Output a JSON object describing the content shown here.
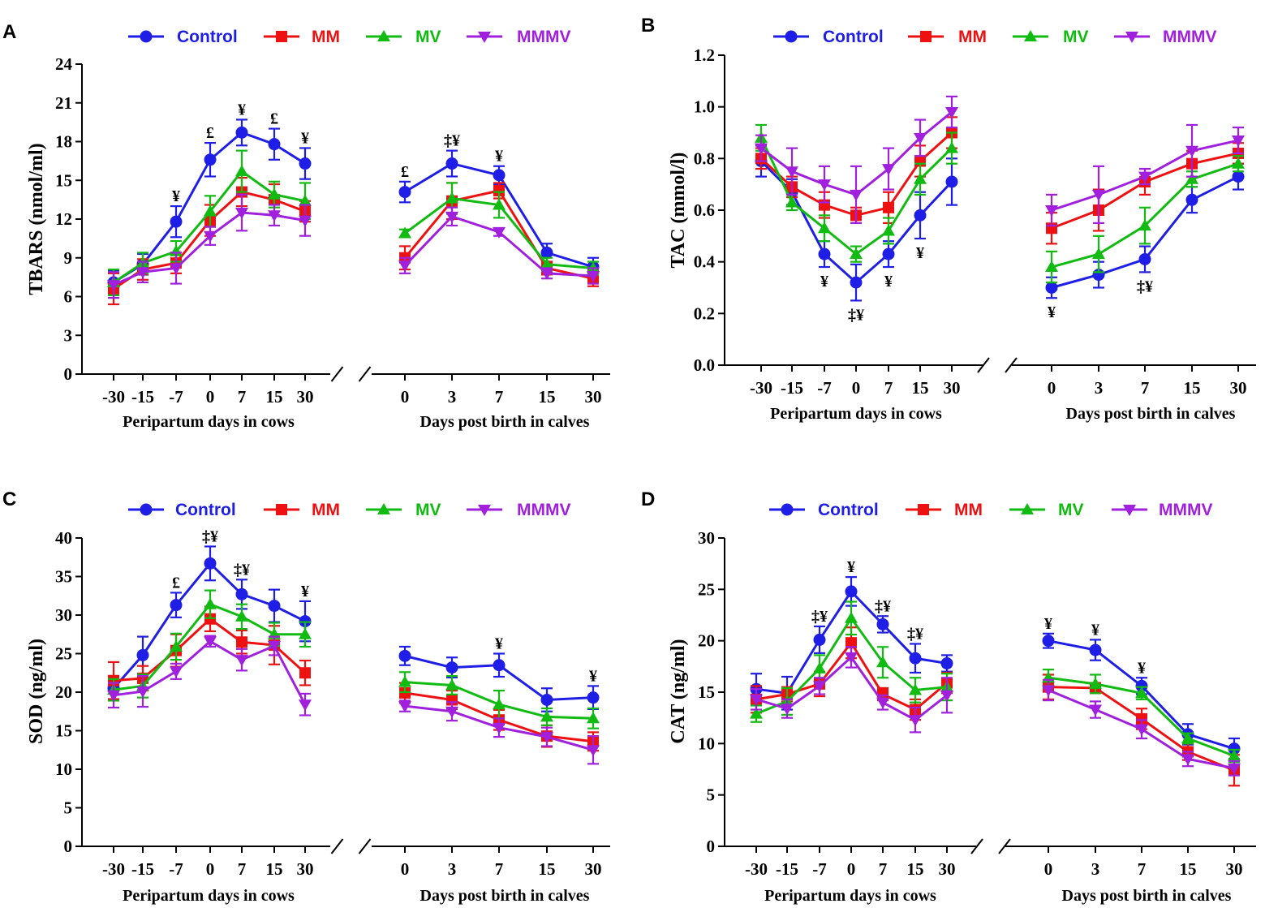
{
  "colors": {
    "Control": "#1e1ee6",
    "MM": "#ee1111",
    "MV": "#11bb11",
    "MMMV": "#a020dd",
    "axis": "#000000"
  },
  "chart_data": [
    {
      "panel": "A",
      "type": "line",
      "ylabel": "TBARS (nmol/ml)",
      "ylim": [
        0,
        24
      ],
      "yticks": [
        "0",
        "3",
        "6",
        "9",
        "12",
        "15",
        "18",
        "21",
        "24"
      ],
      "legend": [
        "Control",
        "MM",
        "MV",
        "MMMV"
      ],
      "segments": [
        {
          "xlabel": "Peripartum days in cows",
          "categories": [
            "-30",
            "-15",
            "-7",
            "0",
            "7",
            "15",
            "30"
          ],
          "series": [
            {
              "name": "Control",
              "values": [
                7.1,
                8.5,
                11.8,
                16.6,
                18.7,
                17.8,
                16.3
              ],
              "errors": [
                0.9,
                0.8,
                1.2,
                1.3,
                1.0,
                1.2,
                1.2
              ]
            },
            {
              "name": "MM",
              "values": [
                6.6,
                8.1,
                8.6,
                11.9,
                14.1,
                13.5,
                12.6
              ],
              "errors": [
                1.2,
                0.8,
                0.8,
                1.2,
                1.1,
                1.2,
                0.8
              ]
            },
            {
              "name": "MV",
              "values": [
                7.1,
                8.6,
                9.5,
                12.6,
                15.7,
                13.9,
                13.4
              ],
              "errors": [
                1.0,
                0.8,
                0.8,
                1.2,
                1.6,
                1.0,
                1.4
              ]
            },
            {
              "name": "MMMV",
              "values": [
                6.9,
                7.9,
                8.2,
                10.7,
                12.5,
                12.3,
                11.9
              ],
              "errors": [
                1.0,
                0.8,
                1.2,
                0.7,
                1.4,
                0.8,
                1.2
              ]
            }
          ],
          "annotations": [
            {
              "x": "-7",
              "text": "¥"
            },
            {
              "x": "0",
              "text": "£"
            },
            {
              "x": "7",
              "text": "¥"
            },
            {
              "x": "15",
              "text": "£"
            },
            {
              "x": "30",
              "text": "¥"
            }
          ]
        },
        {
          "xlabel": "Days post birth in calves",
          "categories": [
            "0",
            "3",
            "7",
            "15",
            "30"
          ],
          "series": [
            {
              "name": "Control",
              "values": [
                14.1,
                16.3,
                15.4,
                9.4,
                8.3
              ],
              "errors": [
                0.8,
                1.0,
                0.7,
                0.7,
                0.7
              ]
            },
            {
              "name": "MM",
              "values": [
                9.0,
                13.4,
                14.2,
                8.2,
                7.4
              ],
              "errors": [
                0.9,
                1.4,
                0.6,
                0.5,
                0.6
              ]
            },
            {
              "name": "MV",
              "values": [
                10.9,
                13.6,
                13.1,
                8.5,
                8.2
              ],
              "errors": [
                0.3,
                1.2,
                1.0,
                0.5,
                0.5
              ]
            },
            {
              "name": "MMMV",
              "values": [
                8.4,
                12.2,
                11.0,
                7.8,
                7.6
              ],
              "errors": [
                0.6,
                0.7,
                0.3,
                0.4,
                0.6
              ]
            }
          ],
          "annotations": [
            {
              "x": "0",
              "text": "£"
            },
            {
              "x": "3",
              "text": "‡¥"
            },
            {
              "x": "7",
              "text": "¥"
            }
          ]
        }
      ]
    },
    {
      "panel": "B",
      "type": "line",
      "ylabel": "TAC (mmol/l)",
      "ylim": [
        0,
        1.2
      ],
      "yticks": [
        "0.0",
        "0.2",
        "0.4",
        "0.6",
        "0.8",
        "1.0",
        "1.2"
      ],
      "legend": [
        "Control",
        "MM",
        "MV",
        "MMMV"
      ],
      "segments": [
        {
          "xlabel": "Peripartum days in cows",
          "categories": [
            "-30",
            "-15",
            "-7",
            "0",
            "7",
            "15",
            "30"
          ],
          "series": [
            {
              "name": "Control",
              "values": [
                0.79,
                0.67,
                0.43,
                0.32,
                0.43,
                0.58,
                0.71
              ],
              "errors": [
                0.06,
                0.05,
                0.05,
                0.07,
                0.05,
                0.09,
                0.09
              ]
            },
            {
              "name": "MM",
              "values": [
                0.8,
                0.69,
                0.62,
                0.58,
                0.61,
                0.79,
                0.9
              ],
              "errors": [
                0.04,
                0.04,
                0.05,
                0.03,
                0.06,
                0.06,
                0.06
              ]
            },
            {
              "name": "MV",
              "values": [
                0.88,
                0.63,
                0.53,
                0.43,
                0.52,
                0.72,
                0.84
              ],
              "errors": [
                0.05,
                0.03,
                0.05,
                0.03,
                0.05,
                0.06,
                0.06
              ]
            },
            {
              "name": "MMMV",
              "values": [
                0.84,
                0.75,
                0.7,
                0.66,
                0.76,
                0.88,
                0.98
              ],
              "errors": [
                0.05,
                0.09,
                0.07,
                0.11,
                0.08,
                0.07,
                0.06
              ]
            }
          ],
          "annotations": [
            {
              "x": "-7",
              "text": "¥"
            },
            {
              "x": "0",
              "text": "‡¥"
            },
            {
              "x": "7",
              "text": "¥"
            },
            {
              "x": "15",
              "text": "¥"
            }
          ]
        },
        {
          "xlabel": "Days post birth in calves",
          "categories": [
            "0",
            "3",
            "7",
            "15",
            "30"
          ],
          "series": [
            {
              "name": "Control",
              "values": [
                0.3,
                0.35,
                0.41,
                0.64,
                0.73
              ],
              "errors": [
                0.04,
                0.05,
                0.05,
                0.05,
                0.05
              ]
            },
            {
              "name": "MM",
              "values": [
                0.53,
                0.6,
                0.71,
                0.78,
                0.82
              ],
              "errors": [
                0.06,
                0.08,
                0.05,
                0.05,
                0.04
              ]
            },
            {
              "name": "MV",
              "values": [
                0.38,
                0.43,
                0.54,
                0.72,
                0.78
              ],
              "errors": [
                0.06,
                0.07,
                0.07,
                0.03,
                0.03
              ]
            },
            {
              "name": "MMMV",
              "values": [
                0.6,
                0.66,
                0.73,
                0.83,
                0.87
              ],
              "errors": [
                0.06,
                0.11,
                0.03,
                0.1,
                0.05
              ]
            }
          ],
          "annotations": [
            {
              "x": "0",
              "text": "¥"
            },
            {
              "x": "7",
              "text": "‡¥"
            }
          ]
        }
      ]
    },
    {
      "panel": "C",
      "type": "line",
      "ylabel": "SOD (ng/ml)",
      "ylim": [
        0,
        40
      ],
      "yticks": [
        "0",
        "5",
        "10",
        "15",
        "20",
        "25",
        "30",
        "35",
        "40"
      ],
      "legend": [
        "Control",
        "MM",
        "MV",
        "MMMV"
      ],
      "segments": [
        {
          "xlabel": "Peripartum days in cows",
          "categories": [
            "-30",
            "-15",
            "-7",
            "0",
            "7",
            "15",
            "30"
          ],
          "series": [
            {
              "name": "Control",
              "values": [
                20.5,
                24.8,
                31.3,
                36.7,
                32.7,
                31.2,
                29.2
              ],
              "errors": [
                1.4,
                2.4,
                1.6,
                2.2,
                1.9,
                2.1,
                2.6
              ]
            },
            {
              "name": "MM",
              "values": [
                21.5,
                21.8,
                25.4,
                29.5,
                26.5,
                26.1,
                22.5
              ],
              "errors": [
                2.4,
                1.6,
                2.1,
                1.6,
                1.5,
                2.5,
                1.6
              ]
            },
            {
              "name": "MV",
              "values": [
                20.3,
                20.8,
                25.9,
                31.4,
                29.8,
                27.5,
                27.5
              ],
              "errors": [
                1.4,
                1.5,
                1.7,
                1.8,
                1.6,
                1.5,
                1.6
              ]
            },
            {
              "name": "MMMV",
              "values": [
                19.6,
                20.1,
                22.7,
                26.6,
                24.2,
                26.0,
                18.4
              ],
              "errors": [
                1.6,
                2.0,
                1.0,
                0.7,
                1.4,
                1.2,
                1.4
              ]
            }
          ],
          "annotations": [
            {
              "x": "-7",
              "text": "£"
            },
            {
              "x": "0",
              "text": "‡¥"
            },
            {
              "x": "7",
              "text": "‡¥"
            },
            {
              "x": "30",
              "text": "¥"
            }
          ]
        },
        {
          "xlabel": "Days post birth in calves",
          "categories": [
            "0",
            "3",
            "7",
            "15",
            "30"
          ],
          "series": [
            {
              "name": "Control",
              "values": [
                24.7,
                23.2,
                23.5,
                19.0,
                19.3
              ],
              "errors": [
                1.2,
                1.3,
                1.5,
                1.5,
                1.5
              ]
            },
            {
              "name": "MM",
              "values": [
                19.9,
                19.0,
                16.4,
                14.3,
                13.6
              ],
              "errors": [
                1.3,
                1.2,
                1.3,
                1.4,
                1.2
              ]
            },
            {
              "name": "MV",
              "values": [
                21.3,
                20.9,
                18.4,
                16.8,
                16.6
              ],
              "errors": [
                1.3,
                1.2,
                1.8,
                1.1,
                1.3
              ]
            },
            {
              "name": "MMMV",
              "values": [
                18.2,
                17.5,
                15.4,
                14.2,
                12.5
              ],
              "errors": [
                0.7,
                1.2,
                1.2,
                1.2,
                1.8
              ]
            }
          ],
          "annotations": [
            {
              "x": "7",
              "text": "¥"
            },
            {
              "x": "30",
              "text": "¥"
            }
          ]
        }
      ]
    },
    {
      "panel": "D",
      "type": "line",
      "ylabel": "CAT (ng/ml)",
      "ylim": [
        0,
        30
      ],
      "yticks": [
        "0",
        "5",
        "10",
        "15",
        "20",
        "25",
        "30"
      ],
      "legend": [
        "Control",
        "MM",
        "MV",
        "MMMV"
      ],
      "segments": [
        {
          "xlabel": "Peripartum days in cows",
          "categories": [
            "-30",
            "-15",
            "-7",
            "0",
            "7",
            "15",
            "30"
          ],
          "series": [
            {
              "name": "Control",
              "values": [
                15.3,
                14.9,
                20.1,
                24.8,
                21.6,
                18.3,
                17.8
              ],
              "errors": [
                1.5,
                1.6,
                1.3,
                1.4,
                0.8,
                1.4,
                0.8
              ]
            },
            {
              "name": "MM",
              "values": [
                14.3,
                14.8,
                15.8,
                19.8,
                14.8,
                13.3,
                15.9
              ],
              "errors": [
                1.3,
                0.7,
                1.2,
                1.5,
                0.6,
                1.0,
                1.0
              ]
            },
            {
              "name": "MV",
              "values": [
                12.9,
                14.1,
                17.3,
                22.2,
                17.9,
                15.2,
                15.5
              ],
              "errors": [
                0.8,
                1.3,
                1.3,
                1.6,
                1.5,
                1.2,
                1.3
              ]
            },
            {
              "name": "MMMV",
              "values": [
                14.3,
                13.4,
                15.6,
                18.4,
                14.0,
                12.3,
                14.7
              ],
              "errors": [
                1.0,
                0.9,
                0.8,
                1.0,
                0.7,
                1.2,
                1.7
              ]
            }
          ],
          "annotations": [
            {
              "x": "-7",
              "text": "‡¥"
            },
            {
              "x": "0",
              "text": "¥"
            },
            {
              "x": "7",
              "text": "‡¥"
            },
            {
              "x": "15",
              "text": "‡¥"
            }
          ]
        },
        {
          "xlabel": "Days post birth in calves",
          "categories": [
            "0",
            "3",
            "7",
            "15",
            "30"
          ],
          "series": [
            {
              "name": "Control",
              "values": [
                20.0,
                19.1,
                15.6,
                10.9,
                9.5
              ],
              "errors": [
                0.7,
                1.0,
                0.8,
                1.0,
                1.0
              ]
            },
            {
              "name": "MM",
              "values": [
                15.5,
                15.4,
                12.4,
                9.2,
                7.4
              ],
              "errors": [
                1.2,
                0.5,
                1.0,
                0.8,
                1.5
              ]
            },
            {
              "name": "MV",
              "values": [
                16.4,
                15.8,
                14.9,
                10.5,
                8.8
              ],
              "errors": [
                0.8,
                0.9,
                0.6,
                0.5,
                0.6
              ]
            },
            {
              "name": "MMMV",
              "values": [
                15.2,
                13.3,
                11.4,
                8.5,
                7.6
              ],
              "errors": [
                1.0,
                0.8,
                0.9,
                0.7,
                0.7
              ]
            }
          ],
          "annotations": [
            {
              "x": "0",
              "text": "¥"
            },
            {
              "x": "3",
              "text": "¥"
            },
            {
              "x": "7",
              "text": "¥"
            }
          ]
        }
      ]
    }
  ]
}
